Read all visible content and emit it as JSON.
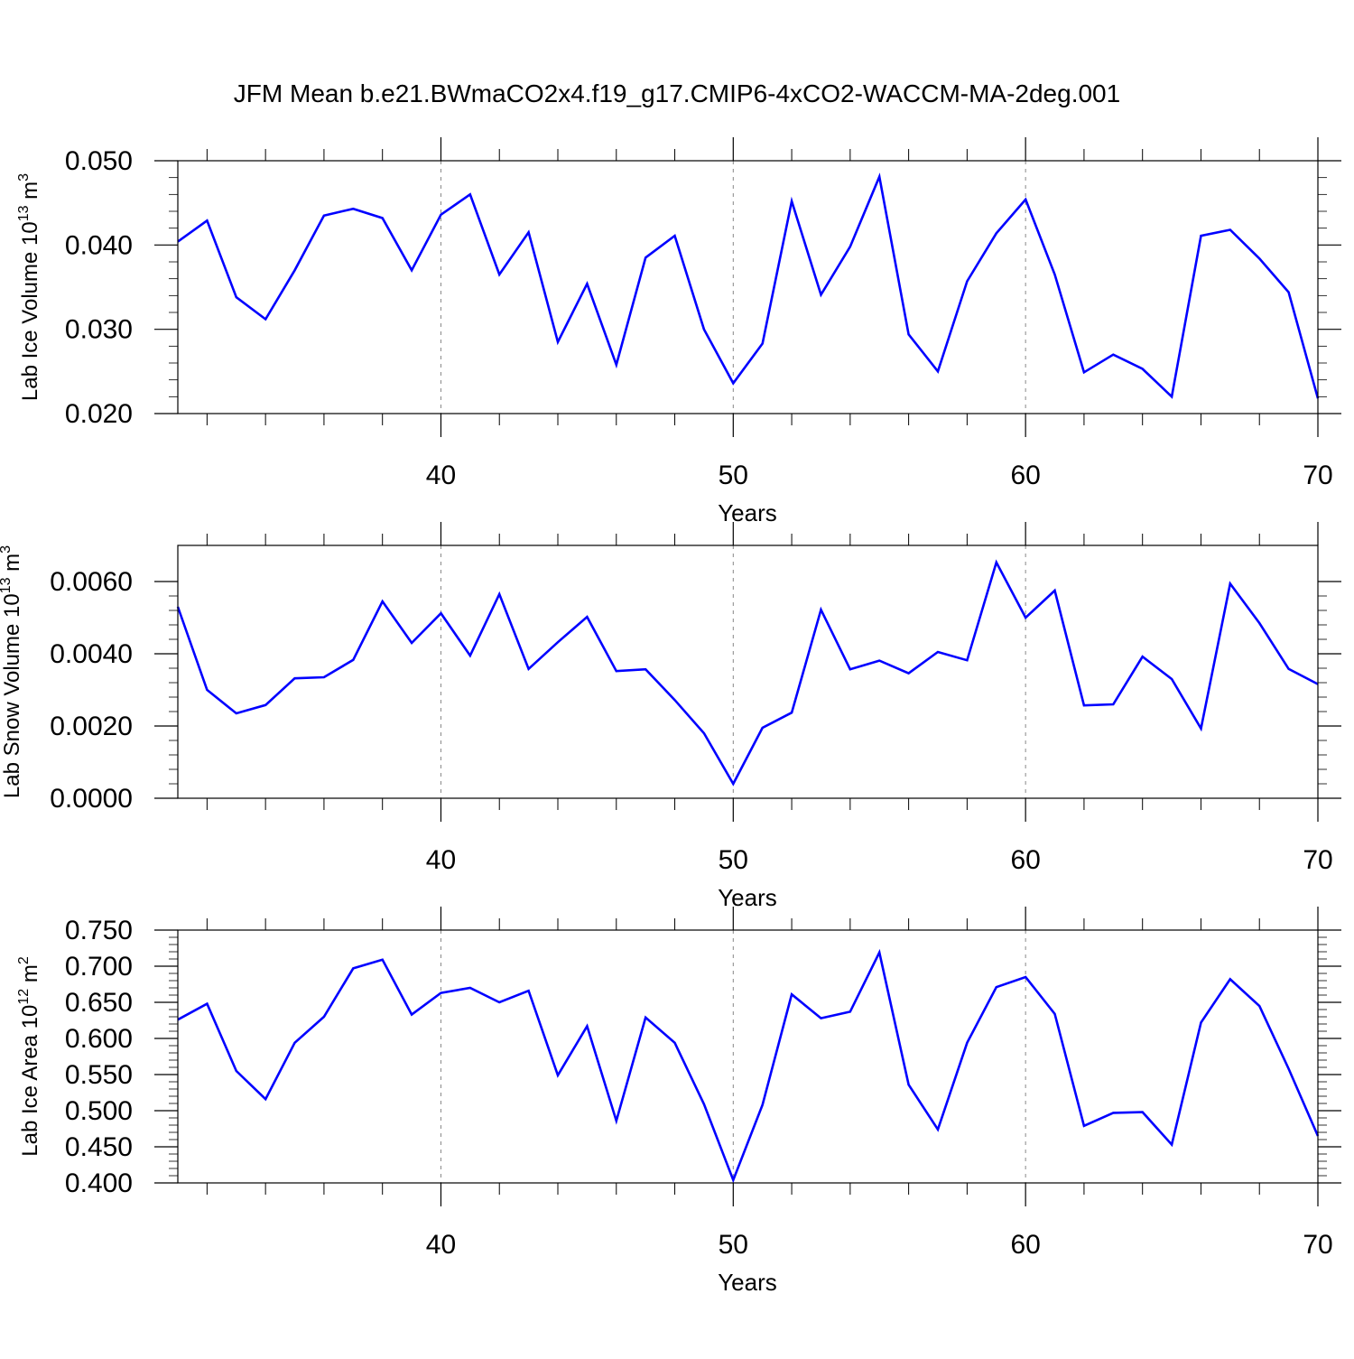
{
  "title": "JFM Mean b.e21.BWmaCO2x4.f19_g17.CMIP6-4xCO2-WACCM-MA-2deg.001",
  "chart_data": [
    {
      "type": "line",
      "xlabel": "Years",
      "ylabel_prefix": "Lab Ice Volume 10",
      "ylabel_exp1": "13",
      "ylabel_mid": " m",
      "ylabel_exp2": "3",
      "xlim": [
        31,
        70
      ],
      "ylim": [
        0.02,
        0.05
      ],
      "xticks": [
        40,
        50,
        60,
        70
      ],
      "xtick_labels": [
        "40",
        "50",
        "60",
        "70"
      ],
      "yticks": [
        0.02,
        0.03,
        0.04,
        0.05
      ],
      "ytick_labels": [
        "0.020",
        "0.030",
        "0.040",
        "0.050"
      ],
      "series": [
        {
          "name": "Lab Ice Volume",
          "color": "#0000ff",
          "x": [
            31,
            32,
            33,
            34,
            35,
            36,
            37,
            38,
            39,
            40,
            41,
            42,
            43,
            44,
            45,
            46,
            47,
            48,
            49,
            50,
            51,
            52,
            53,
            54,
            55,
            56,
            57,
            58,
            59,
            60,
            61,
            62,
            63,
            64,
            65,
            66,
            67,
            68,
            69,
            70
          ],
          "values": [
            0.0404,
            0.0429,
            0.0338,
            0.0312,
            0.037,
            0.0435,
            0.0443,
            0.0432,
            0.037,
            0.0436,
            0.046,
            0.0365,
            0.0415,
            0.0285,
            0.0354,
            0.0258,
            0.0385,
            0.0411,
            0.03,
            0.0236,
            0.0283,
            0.0452,
            0.0341,
            0.0398,
            0.0481,
            0.0294,
            0.025,
            0.0357,
            0.0414,
            0.0454,
            0.0365,
            0.0249,
            0.027,
            0.0253,
            0.022,
            0.0411,
            0.0418,
            0.0384,
            0.0344,
            0.0218
          ]
        }
      ]
    },
    {
      "type": "line",
      "xlabel": "Years",
      "ylabel_prefix": "Lab Snow Volume 10",
      "ylabel_exp1": "13",
      "ylabel_mid": " m",
      "ylabel_exp2": "3",
      "xlim": [
        31,
        70
      ],
      "ylim": [
        0.0,
        0.007
      ],
      "xticks": [
        40,
        50,
        60,
        70
      ],
      "xtick_labels": [
        "40",
        "50",
        "60",
        "70"
      ],
      "yticks": [
        0.0,
        0.002,
        0.004,
        0.006
      ],
      "ytick_labels": [
        "0.0000",
        "0.0020",
        "0.0040",
        "0.0060"
      ],
      "series": [
        {
          "name": "Lab Snow Volume",
          "color": "#0000ff",
          "x": [
            31,
            32,
            33,
            34,
            35,
            36,
            37,
            38,
            39,
            40,
            41,
            42,
            43,
            44,
            45,
            46,
            47,
            48,
            49,
            50,
            51,
            52,
            53,
            54,
            55,
            56,
            57,
            58,
            59,
            60,
            61,
            62,
            63,
            64,
            65,
            66,
            67,
            68,
            69,
            70
          ],
          "values": [
            0.0053,
            0.003,
            0.00235,
            0.00258,
            0.00332,
            0.00335,
            0.00383,
            0.00545,
            0.0043,
            0.00512,
            0.00395,
            0.00565,
            0.00358,
            0.00432,
            0.00502,
            0.00352,
            0.00357,
            0.00272,
            0.0018,
            0.0004,
            0.00195,
            0.00237,
            0.00522,
            0.00357,
            0.00381,
            0.00346,
            0.00405,
            0.00382,
            0.00653,
            0.005,
            0.00575,
            0.00257,
            0.0026,
            0.00392,
            0.0033,
            0.00193,
            0.00594,
            0.00485,
            0.00358,
            0.00316
          ]
        }
      ]
    },
    {
      "type": "line",
      "xlabel": "Years",
      "ylabel_prefix": "Lab Ice Area 10",
      "ylabel_exp1": "12",
      "ylabel_mid": " m",
      "ylabel_exp2": "2",
      "xlim": [
        31,
        70
      ],
      "ylim": [
        0.4,
        0.75
      ],
      "xticks": [
        40,
        50,
        60,
        70
      ],
      "xtick_labels": [
        "40",
        "50",
        "60",
        "70"
      ],
      "yticks": [
        0.4,
        0.45,
        0.5,
        0.55,
        0.6,
        0.65,
        0.7,
        0.75
      ],
      "ytick_labels": [
        "0.400",
        "0.450",
        "0.500",
        "0.550",
        "0.600",
        "0.650",
        "0.700",
        "0.750"
      ],
      "series": [
        {
          "name": "Lab Ice Area",
          "color": "#0000ff",
          "x": [
            31,
            32,
            33,
            34,
            35,
            36,
            37,
            38,
            39,
            40,
            41,
            42,
            43,
            44,
            45,
            46,
            47,
            48,
            49,
            50,
            51,
            52,
            53,
            54,
            55,
            56,
            57,
            58,
            59,
            60,
            61,
            62,
            63,
            64,
            65,
            66,
            67,
            68,
            69,
            70
          ],
          "values": [
            0.626,
            0.648,
            0.555,
            0.516,
            0.594,
            0.63,
            0.697,
            0.709,
            0.633,
            0.663,
            0.67,
            0.65,
            0.666,
            0.549,
            0.617,
            0.486,
            0.629,
            0.594,
            0.509,
            0.404,
            0.508,
            0.661,
            0.628,
            0.637,
            0.719,
            0.536,
            0.474,
            0.594,
            0.671,
            0.685,
            0.634,
            0.479,
            0.497,
            0.498,
            0.453,
            0.622,
            0.682,
            0.645,
            0.558,
            0.465
          ]
        }
      ]
    }
  ]
}
